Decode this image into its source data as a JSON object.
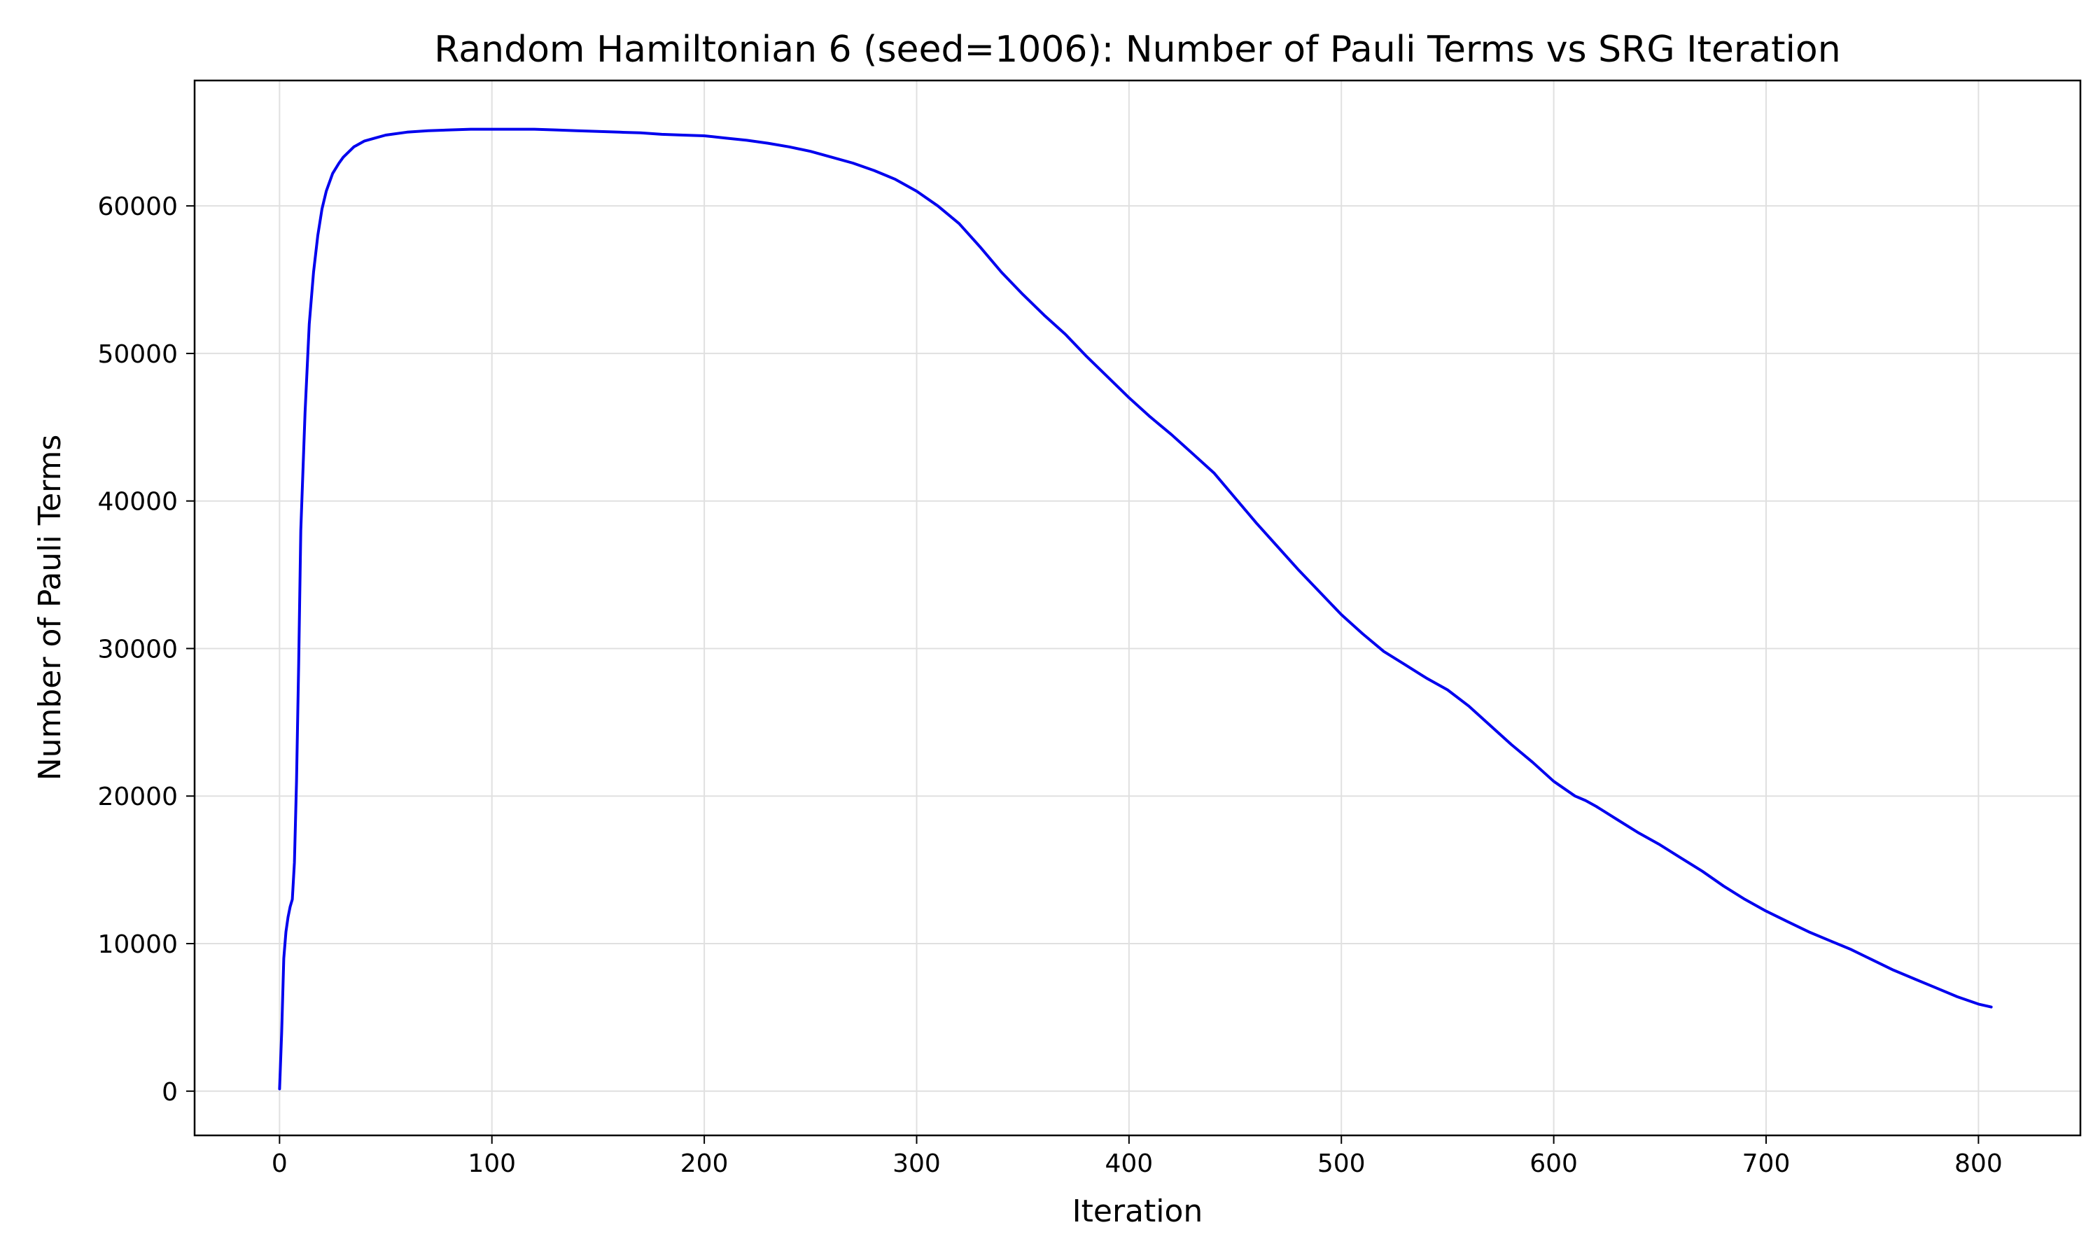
{
  "chart_data": {
    "type": "line",
    "title": "Random Hamiltonian 6 (seed=1006): Number of Pauli Terms vs SRG Iteration",
    "xlabel": "Iteration",
    "ylabel": "Number of Pauli Terms",
    "xlim": [
      -40,
      848
    ],
    "ylim": [
      -3000,
      68500
    ],
    "xticks": [
      0,
      100,
      200,
      300,
      400,
      500,
      600,
      700,
      800
    ],
    "yticks": [
      0,
      10000,
      20000,
      30000,
      40000,
      50000,
      60000
    ],
    "grid": true,
    "colors": {
      "line": "#0000ee",
      "grid": "#e0e0e0",
      "axes": "#000000"
    },
    "series": [
      {
        "x": [
          0,
          1,
          2,
          3,
          4,
          5,
          6,
          7,
          8,
          9,
          10,
          12,
          14,
          16,
          18,
          20,
          22,
          25,
          28,
          30,
          35,
          40,
          45,
          50,
          60,
          70,
          80,
          90,
          100,
          110,
          120,
          130,
          140,
          150,
          160,
          170,
          180,
          190,
          200,
          210,
          220,
          230,
          240,
          250,
          260,
          270,
          280,
          290,
          300,
          310,
          320,
          330,
          340,
          350,
          360,
          370,
          380,
          390,
          400,
          410,
          420,
          430,
          440,
          450,
          460,
          470,
          480,
          490,
          500,
          510,
          520,
          530,
          540,
          550,
          560,
          570,
          580,
          590,
          600,
          610,
          615,
          620,
          630,
          640,
          650,
          660,
          670,
          680,
          690,
          700,
          710,
          720,
          730,
          740,
          750,
          760,
          770,
          780,
          790,
          800,
          806
        ],
        "y": [
          150,
          4000,
          9000,
          10800,
          11800,
          12500,
          13000,
          15500,
          21000,
          29000,
          38000,
          46000,
          52000,
          55500,
          58000,
          59800,
          61000,
          62200,
          62900,
          63300,
          64000,
          64400,
          64600,
          64800,
          65000,
          65100,
          65150,
          65200,
          65200,
          65200,
          65200,
          65150,
          65100,
          65050,
          65000,
          64950,
          64850,
          64800,
          64750,
          64600,
          64450,
          64250,
          64000,
          63700,
          63300,
          62900,
          62400,
          61800,
          61000,
          60000,
          58800,
          57200,
          55500,
          54000,
          52600,
          51300,
          49800,
          48400,
          47000,
          45700,
          44500,
          43200,
          41900,
          40200,
          38500,
          36900,
          35300,
          33800,
          32300,
          31000,
          29800,
          28900,
          28000,
          27200,
          26100,
          24800,
          23500,
          22300,
          21000,
          20000,
          19700,
          19300,
          18400,
          17500,
          16700,
          15800,
          14900,
          13900,
          13000,
          12200,
          11500,
          10800,
          10200,
          9600,
          8900,
          8200,
          7600,
          7000,
          6400,
          5900,
          5700
        ]
      }
    ]
  }
}
